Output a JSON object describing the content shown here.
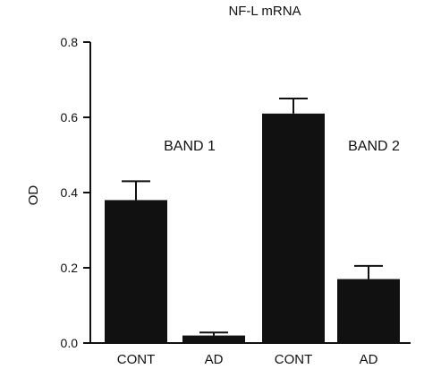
{
  "chart_data": {
    "type": "bar",
    "title": "NF-L mRNA",
    "ylabel": "OD",
    "xlabel": "",
    "ylim": [
      0,
      0.8
    ],
    "yticks": [
      "0.0",
      "0.2",
      "0.4",
      "0.6",
      "0.8"
    ],
    "categories": [
      "CONT",
      "AD",
      "CONT",
      "AD"
    ],
    "values": [
      0.38,
      0.02,
      0.61,
      0.17
    ],
    "errors": [
      0.05,
      0.008,
      0.04,
      0.035
    ],
    "group_labels": [
      "BAND 1",
      "BAND 2"
    ],
    "bar_color": "#111111",
    "grid": false
  }
}
